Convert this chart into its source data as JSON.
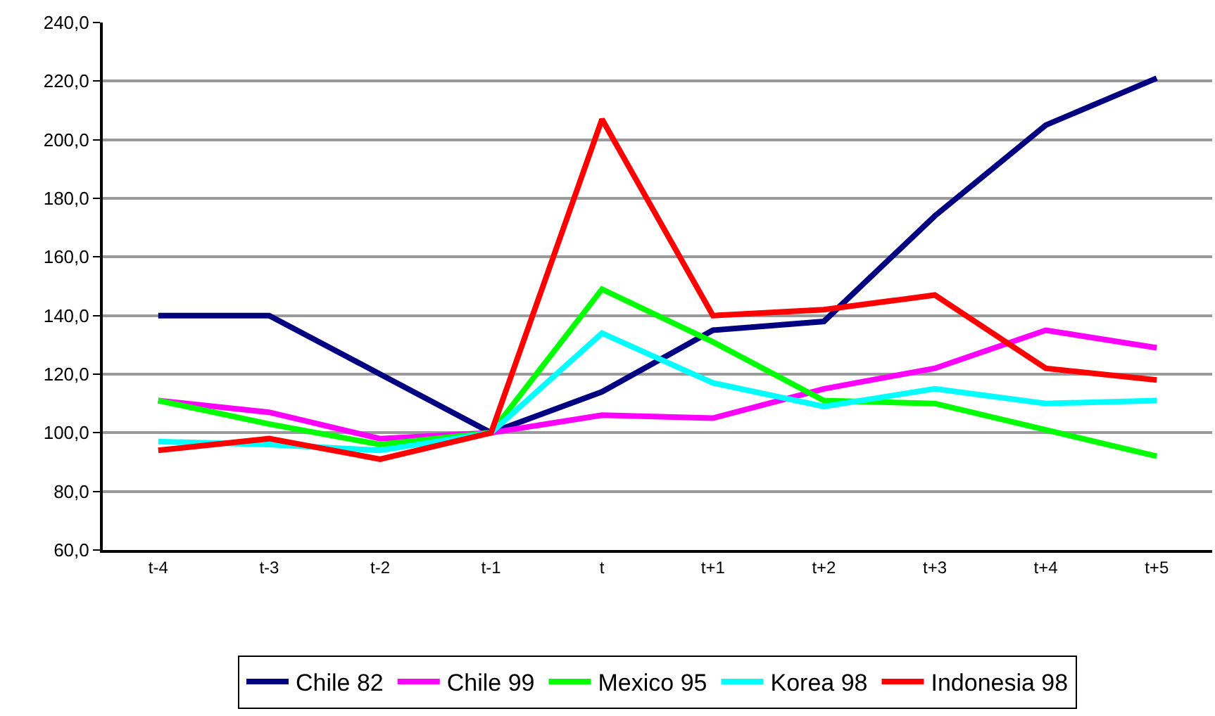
{
  "chart_data": {
    "type": "line",
    "categories": [
      "t-4",
      "t-3",
      "t-2",
      "t-1",
      "t",
      "t+1",
      "t+2",
      "t+3",
      "t+4",
      "t+5"
    ],
    "series": [
      {
        "name": "Chile 82",
        "color": "#000080",
        "values": [
          140,
          140,
          120,
          100,
          114,
          135,
          138,
          174,
          205,
          221
        ]
      },
      {
        "name": "Chile 99",
        "color": "#ff00ff",
        "values": [
          111,
          107,
          98,
          100,
          106,
          105,
          115,
          122,
          135,
          129
        ]
      },
      {
        "name": "Mexico 95",
        "color": "#00ff00",
        "values": [
          111,
          103,
          96,
          100,
          149,
          131,
          111,
          110,
          101,
          92
        ]
      },
      {
        "name": "Korea 98",
        "color": "#00ffff",
        "values": [
          97,
          96,
          94,
          100,
          134,
          117,
          109,
          115,
          110,
          111
        ]
      },
      {
        "name": "Indonesia 98",
        "color": "#ff0000",
        "values": [
          94,
          98,
          91,
          100,
          207,
          140,
          142,
          147,
          122,
          118
        ]
      }
    ],
    "ylim": [
      60,
      240
    ],
    "yticks": [
      {
        "value": 60,
        "label": "60,0"
      },
      {
        "value": 80,
        "label": "80,0"
      },
      {
        "value": 100,
        "label": "100,0"
      },
      {
        "value": 120,
        "label": "120,0"
      },
      {
        "value": 140,
        "label": "140,0"
      },
      {
        "value": 160,
        "label": "160,0"
      },
      {
        "value": 180,
        "label": "180,0"
      },
      {
        "value": 200,
        "label": "200,0"
      },
      {
        "value": 220,
        "label": "220,0"
      },
      {
        "value": 240,
        "label": "240,0"
      }
    ],
    "grid": "y",
    "legend": "bottom",
    "marker": "none",
    "line_style": "solid"
  }
}
